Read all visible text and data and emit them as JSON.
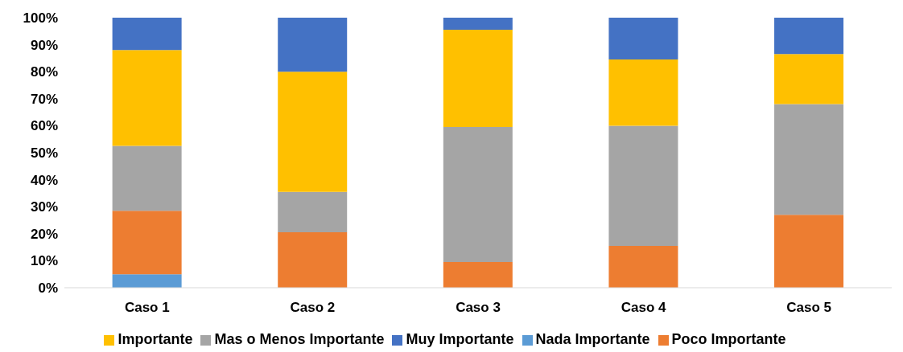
{
  "chart_data": {
    "type": "bar",
    "stacked": true,
    "categories": [
      "Caso 1",
      "Caso 2",
      "Caso 3",
      "Caso 4",
      "Caso 5"
    ],
    "series": [
      {
        "name": "Nada Importante",
        "color": "#5b9bd5",
        "values": [
          5,
          0,
          0,
          0,
          0
        ]
      },
      {
        "name": "Poco Importante",
        "color": "#ed7d31",
        "values": [
          23.5,
          20.5,
          9.5,
          15.5,
          27
        ]
      },
      {
        "name": "Mas o Menos Importante",
        "color": "#a5a5a5",
        "values": [
          24,
          15,
          50,
          44.5,
          41
        ]
      },
      {
        "name": "Importante",
        "color": "#ffc000",
        "values": [
          35.5,
          44.5,
          36,
          24.5,
          18.5
        ]
      },
      {
        "name": "Muy Importante",
        "color": "#4472c4",
        "values": [
          12,
          20,
          4.5,
          15.5,
          13.5
        ]
      }
    ],
    "ylim": [
      0,
      100
    ],
    "yticks": [
      {
        "value": 0,
        "label": "0%"
      },
      {
        "value": 10,
        "label": "10%"
      },
      {
        "value": 20,
        "label": "20%"
      },
      {
        "value": 30,
        "label": "30%"
      },
      {
        "value": 40,
        "label": "40%"
      },
      {
        "value": 50,
        "label": "50%"
      },
      {
        "value": 60,
        "label": "60%"
      },
      {
        "value": 70,
        "label": "70%"
      },
      {
        "value": 80,
        "label": "80%"
      },
      {
        "value": 90,
        "label": "90%"
      },
      {
        "value": 100,
        "label": "100%"
      }
    ],
    "legend": "bottom"
  }
}
